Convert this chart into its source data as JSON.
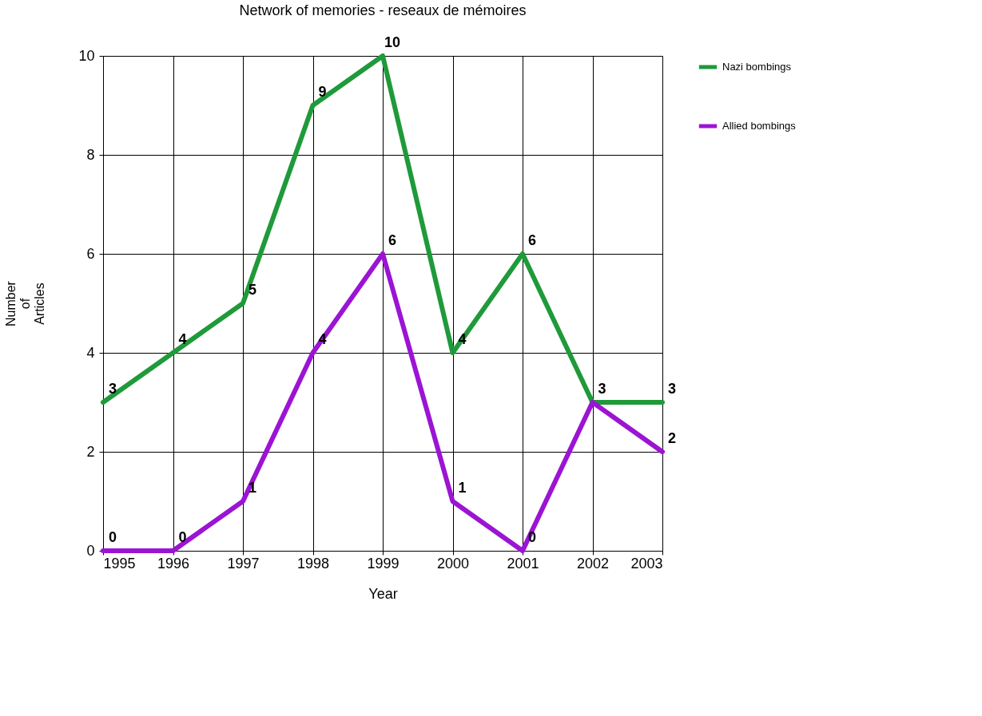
{
  "chart_data": {
    "type": "line",
    "title": "Network of memories - reseaux de mémoires",
    "xlabel": "Year",
    "ylabel": "Number of Articles",
    "x": [
      1995,
      1996,
      1997,
      1998,
      1999,
      2000,
      2001,
      2002,
      2003
    ],
    "series": [
      {
        "name": "Nazi bombings",
        "color": "#1f9a3a",
        "values": [
          3,
          4,
          5,
          9,
          10,
          4,
          6,
          3,
          3
        ],
        "value_labels": [
          "3",
          "4",
          "5",
          "9",
          "10",
          "4",
          "6",
          "3",
          "3"
        ]
      },
      {
        "name": "Allied bombings",
        "color": "#9b14d4",
        "values": [
          0,
          0,
          1,
          4,
          6,
          1,
          0,
          3,
          2
        ],
        "value_labels": [
          "0",
          "0",
          "1",
          "4",
          "6",
          "1",
          "0",
          null,
          "2"
        ]
      }
    ],
    "xlim": [
      1995,
      2003
    ],
    "xticks": [
      1995,
      1996,
      1997,
      1998,
      1999,
      2000,
      2001,
      2002,
      2003
    ],
    "ylim": [
      0,
      10
    ],
    "yticks": [
      0,
      2,
      4,
      6,
      8,
      10
    ],
    "grid": true,
    "legend": "right",
    "marker": "none",
    "line_style": "solid"
  }
}
